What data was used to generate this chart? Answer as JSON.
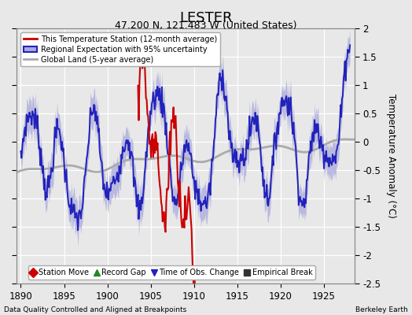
{
  "title": "LESTER",
  "subtitle": "47.200 N, 121.483 W (United States)",
  "ylabel": "Temperature Anomaly (°C)",
  "xlim": [
    1889.5,
    1928.5
  ],
  "ylim": [
    -2.5,
    2.0
  ],
  "yticks": [
    -2.5,
    -2.0,
    -1.5,
    -1.0,
    -0.5,
    0,
    0.5,
    1.0,
    1.5,
    2.0
  ],
  "ytick_labels": [
    "-2.5",
    "-2",
    "-1.5",
    "-1",
    "-0.5",
    "0",
    "0.5",
    "1",
    "1.5",
    "2"
  ],
  "xticks": [
    1890,
    1895,
    1900,
    1905,
    1910,
    1915,
    1920,
    1925
  ],
  "bg_color": "#e8e8e8",
  "plot_bg_color": "#e8e8e8",
  "grid_color": "#ffffff",
  "regional_color": "#2222bb",
  "regional_fill_color": "#aaaadd",
  "station_color": "#cc0000",
  "global_color": "#aaaaaa",
  "footer_left": "Data Quality Controlled and Aligned at Breakpoints",
  "footer_right": "Berkeley Earth",
  "legend1_labels": [
    "This Temperature Station (12-month average)",
    "Regional Expectation with 95% uncertainty",
    "Global Land (5-year average)"
  ],
  "legend2_entries": [
    {
      "label": "Station Move",
      "marker": "D",
      "color": "#cc0000"
    },
    {
      "label": "Record Gap",
      "marker": "^",
      "color": "#228822"
    },
    {
      "label": "Time of Obs. Change",
      "marker": "v",
      "color": "#2222bb"
    },
    {
      "label": "Empirical Break",
      "marker": "s",
      "color": "#333333"
    }
  ]
}
